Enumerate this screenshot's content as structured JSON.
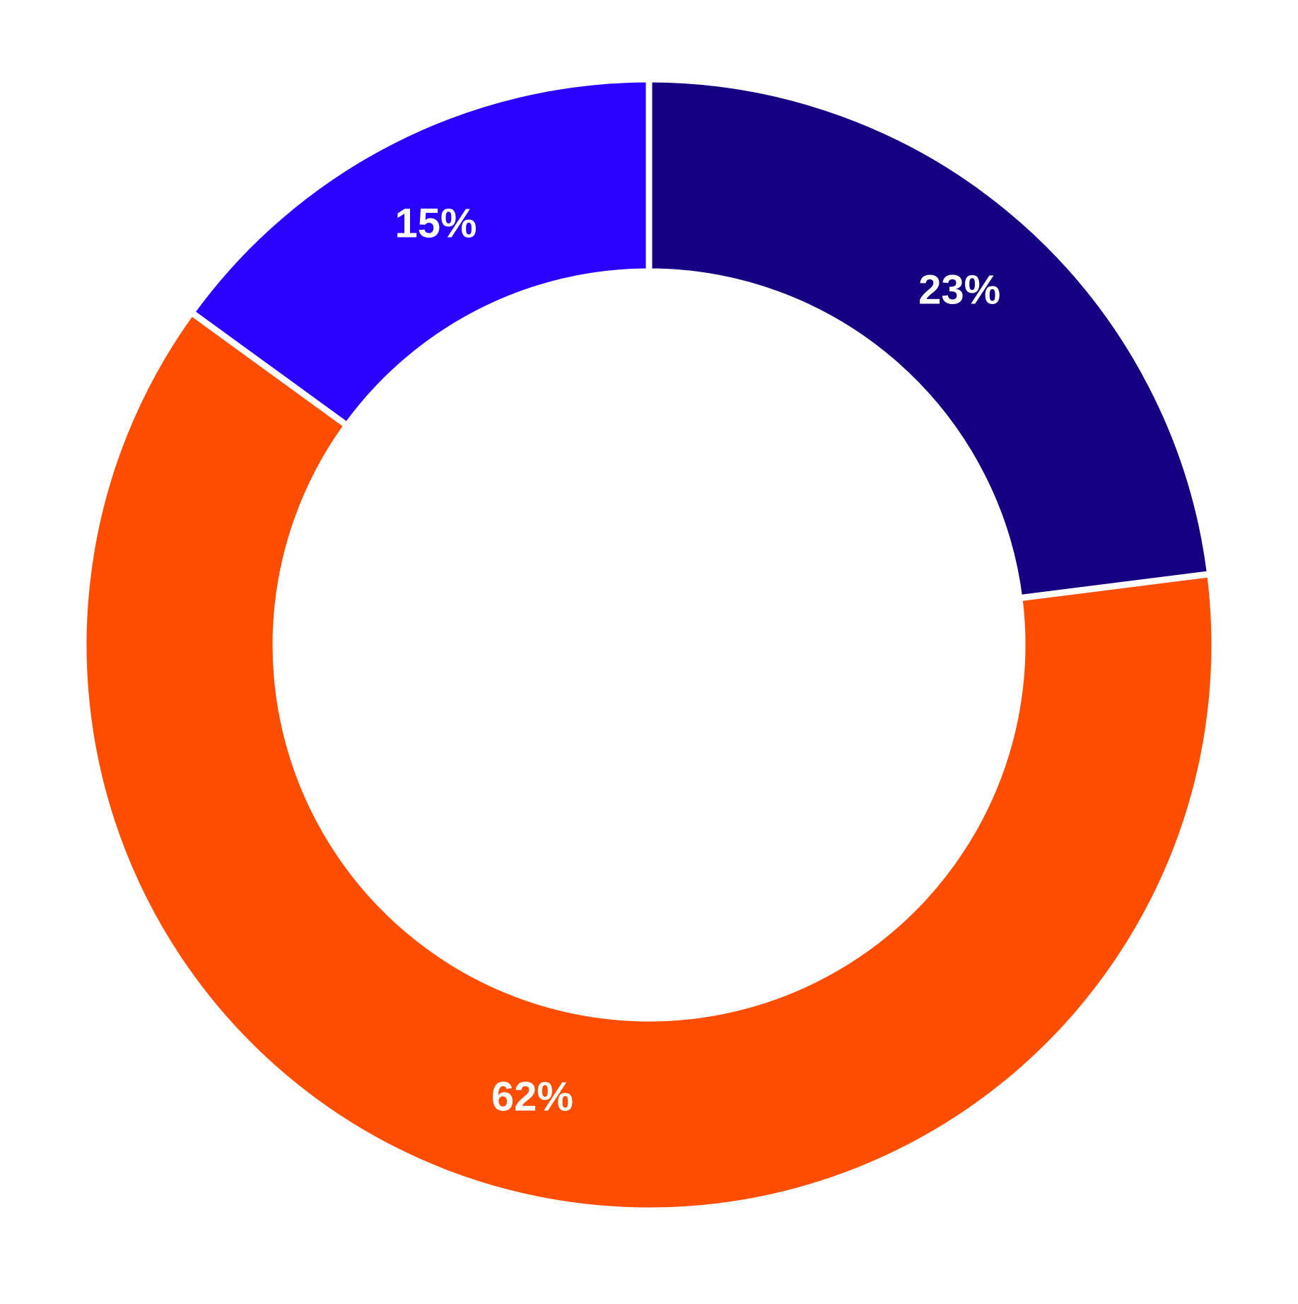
{
  "chart_data": {
    "type": "donut",
    "values": [
      23,
      62,
      15
    ],
    "value_labels": [
      "23%",
      "62%",
      "15%"
    ],
    "colors": [
      "#140080",
      "#ff4d00",
      "#2a00ff"
    ]
  }
}
